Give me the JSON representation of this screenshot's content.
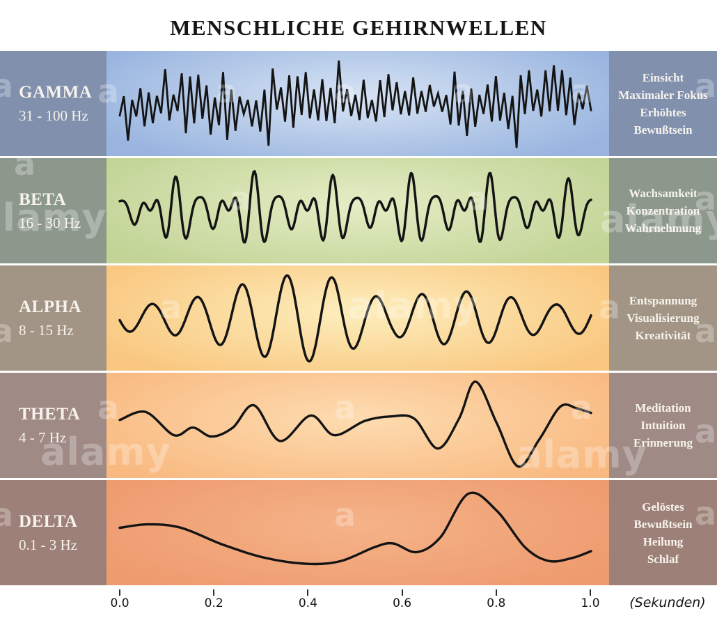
{
  "title": "MENSCHLICHE GEHIRNWELLEN",
  "bands": [
    {
      "name": "GAMMA",
      "freq": "31 - 100 Hz",
      "traits": [
        "Einsicht",
        "Maximaler Fokus",
        "Erhöhtes",
        "Bewußtsein"
      ],
      "colors": {
        "panel": "#8090ad",
        "wave_center": "#d8e4f4",
        "wave_edge": "#98b4df",
        "stroke": "#141414"
      },
      "wave": {
        "kind": "noise",
        "segments": 114,
        "amplitude": 50,
        "seed": 7
      }
    },
    {
      "name": "BETA",
      "freq": "16 - 30 Hz",
      "traits": [
        "Wachsamkeit",
        "Konzentration",
        "Wahrnehmung"
      ],
      "colors": {
        "panel": "#8c988c",
        "wave_center": "#e4edc6",
        "wave_edge": "#c2d496",
        "stroke": "#141414"
      },
      "wave": {
        "kind": "sines",
        "amplitude": 56,
        "components": [
          [
            18,
            0.45,
            0.8
          ],
          [
            24,
            0.32,
            2.1
          ],
          [
            30,
            0.25,
            4.6
          ]
        ],
        "envelope": [
          [
            0,
            0.7
          ],
          [
            0.15,
            0.95
          ],
          [
            0.3,
            1.05
          ],
          [
            0.5,
            0.9
          ],
          [
            0.7,
            1.05
          ],
          [
            0.85,
            0.95
          ],
          [
            1,
            0.8
          ]
        ]
      }
    },
    {
      "name": "ALPHA",
      "freq": "8 - 15 Hz",
      "traits": [
        "Entspannung",
        "Visualisierung",
        "Kreativität"
      ],
      "colors": {
        "panel": "#a29585",
        "wave_center": "#fdeebd",
        "wave_edge": "#f9c77f",
        "stroke": "#141414"
      },
      "wave": {
        "kind": "sines",
        "amplitude": 64,
        "components": [
          [
            10.5,
            1,
            3.3
          ]
        ],
        "envelope": [
          [
            0,
            0.3
          ],
          [
            0.08,
            0.32
          ],
          [
            0.18,
            0.5
          ],
          [
            0.28,
            0.82
          ],
          [
            0.38,
            1.0
          ],
          [
            0.46,
            0.9
          ],
          [
            0.52,
            0.55
          ],
          [
            0.58,
            0.4
          ],
          [
            0.66,
            0.58
          ],
          [
            0.76,
            0.6
          ],
          [
            0.84,
            0.45
          ],
          [
            0.92,
            0.3
          ],
          [
            1,
            0.38
          ]
        ]
      }
    },
    {
      "name": "THETA",
      "freq": "4 - 7 Hz",
      "traits": [
        "Meditation",
        "Intuition",
        "Erinnerung"
      ],
      "colors": {
        "panel": "#9f8a85",
        "wave_center": "#fddcb0",
        "wave_edge": "#f9ba82",
        "stroke": "#141414"
      },
      "wave": {
        "kind": "points",
        "amplitude": 64,
        "points": [
          [
            0,
            0.12
          ],
          [
            0.055,
            0.3
          ],
          [
            0.115,
            -0.22
          ],
          [
            0.155,
            -0.05
          ],
          [
            0.195,
            -0.25
          ],
          [
            0.24,
            -0.05
          ],
          [
            0.285,
            0.45
          ],
          [
            0.34,
            -0.35
          ],
          [
            0.405,
            0.22
          ],
          [
            0.455,
            -0.22
          ],
          [
            0.52,
            0.1
          ],
          [
            0.575,
            0.2
          ],
          [
            0.625,
            0.15
          ],
          [
            0.675,
            -0.52
          ],
          [
            0.72,
            0.15
          ],
          [
            0.755,
            0.98
          ],
          [
            0.8,
            0.05
          ],
          [
            0.845,
            -0.92
          ],
          [
            0.89,
            -0.32
          ],
          [
            0.935,
            0.42
          ],
          [
            0.97,
            0.38
          ],
          [
            1,
            0.28
          ]
        ]
      }
    },
    {
      "name": "DELTA",
      "freq": "0.1 - 3 Hz",
      "traits": [
        "Gelöstes",
        "Bewußtsein",
        "Heilung",
        "Schlaf"
      ],
      "colors": {
        "panel": "#9d8078",
        "wave_center": "#f5b388",
        "wave_edge": "#ee9b6f",
        "stroke": "#141414"
      },
      "wave": {
        "kind": "points",
        "amplitude": 70,
        "points": [
          [
            0,
            0.1
          ],
          [
            0.06,
            0.17
          ],
          [
            0.13,
            0.1
          ],
          [
            0.22,
            -0.25
          ],
          [
            0.31,
            -0.52
          ],
          [
            0.4,
            -0.64
          ],
          [
            0.47,
            -0.58
          ],
          [
            0.54,
            -0.3
          ],
          [
            0.58,
            -0.22
          ],
          [
            0.63,
            -0.4
          ],
          [
            0.68,
            -0.1
          ],
          [
            0.74,
            0.8
          ],
          [
            0.8,
            0.45
          ],
          [
            0.86,
            -0.3
          ],
          [
            0.91,
            -0.58
          ],
          [
            0.96,
            -0.52
          ],
          [
            1,
            -0.38
          ]
        ]
      }
    }
  ],
  "axis": {
    "ticks": [
      "0.0",
      "0.2",
      "0.4",
      "0.6",
      "0.8",
      "1.0"
    ],
    "unit_label": "(Sekunden)"
  },
  "watermark": {
    "word": "alamy",
    "letter": "a"
  }
}
